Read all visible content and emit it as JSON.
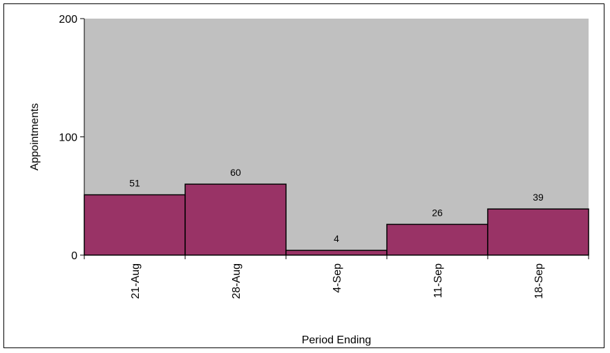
{
  "chart_data": {
    "type": "bar",
    "categories": [
      "21-Aug",
      "28-Aug",
      "4-Sep",
      "11-Sep",
      "18-Sep"
    ],
    "values": [
      51,
      60,
      4,
      26,
      39
    ],
    "data_labels": [
      "51",
      "60",
      "4",
      "26",
      "39"
    ],
    "xlabel": "Period Ending",
    "ylabel": "Appointments",
    "ylim": [
      0,
      200
    ],
    "yticks": [
      0,
      100,
      200
    ],
    "ytick_labels": [
      "0",
      "100",
      "200"
    ],
    "grid": false,
    "legend": "none",
    "colors": {
      "bar_fill": "#993366",
      "bar_stroke": "#000000",
      "plot_background": "#c0c0c0",
      "page_background": "#ffffff"
    }
  }
}
